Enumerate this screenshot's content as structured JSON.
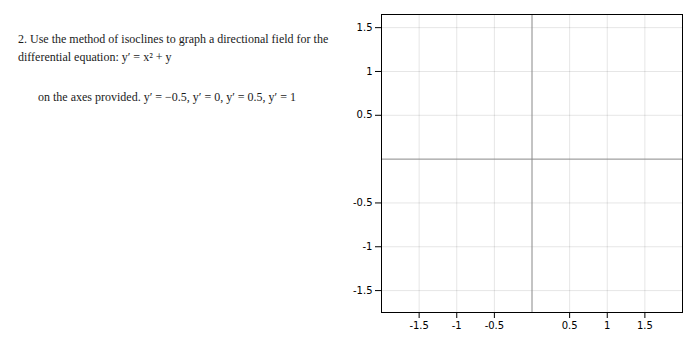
{
  "chart_data": {
    "type": "line",
    "annotations": [
      "2.   Use the method of isoclines to graph a directional field for the differential equation:  y′ = x² + y",
      "on the axes provided.   y′ = −0.5, y′ = 0, y′ = 0.5, y′ = 1"
    ],
    "series": [],
    "xlim": [
      -2.0,
      2.0
    ],
    "ylim": [
      -1.75,
      1.65
    ],
    "xticks": [
      -1.5,
      -1.0,
      -0.5,
      0.5,
      1.0,
      1.5
    ],
    "yticks": [
      -1.5,
      -1.0,
      -0.5,
      0.5,
      1.0,
      1.5
    ],
    "grid": true
  }
}
